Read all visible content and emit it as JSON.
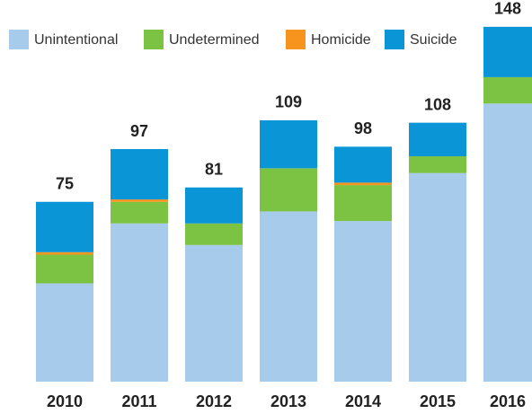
{
  "chart_data": {
    "type": "stacked_bar",
    "categories": [
      "2010",
      "2011",
      "2012",
      "2013",
      "2014",
      "2015",
      "2016"
    ],
    "series": [
      {
        "name": "Unintentional",
        "color": "#a6cbeb",
        "values": [
          41,
          66,
          57,
          71,
          67,
          87,
          116
        ]
      },
      {
        "name": "Undetermined",
        "color": "#7cc243",
        "values": [
          12,
          9,
          9,
          18,
          15,
          7,
          11
        ]
      },
      {
        "name": "Homicide",
        "color": "#f7941d",
        "values": [
          1,
          1,
          0,
          0,
          1,
          0,
          0
        ]
      },
      {
        "name": "Suicide",
        "color": "#0a96d6",
        "values": [
          21,
          21,
          15,
          20,
          15,
          14,
          21
        ]
      }
    ],
    "totals": [
      75,
      97,
      81,
      109,
      98,
      108,
      148
    ],
    "legend": "top"
  }
}
